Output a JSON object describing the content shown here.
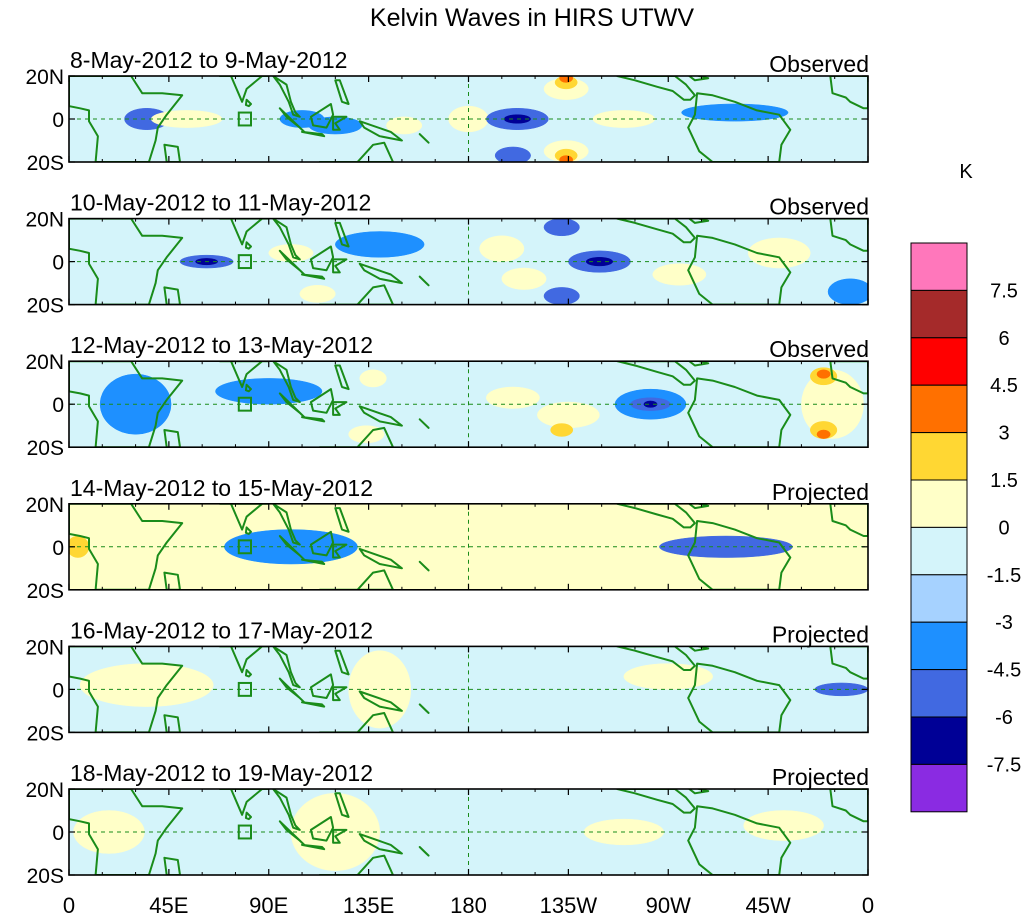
{
  "chart_data": {
    "type": "heatmap",
    "title": "Kelvin Waves in HIRS UTWV",
    "units_label": "K",
    "x_ticks": [
      "0",
      "45E",
      "90E",
      "135E",
      "180",
      "135W",
      "90W",
      "45W",
      "0"
    ],
    "x_tick_values": [
      0,
      45,
      90,
      135,
      180,
      225,
      270,
      315,
      360
    ],
    "xlim": [
      0,
      360
    ],
    "y_ticks": [
      "20N",
      "0",
      "20S"
    ],
    "y_tick_values": [
      20,
      0,
      -20
    ],
    "ylim": [
      -20,
      20
    ],
    "colorbar": {
      "labels": [
        "7.5",
        "6",
        "4.5",
        "3",
        "1.5",
        "0",
        "-1.5",
        "-3",
        "-4.5",
        "-6",
        "-7.5"
      ],
      "colors": [
        "#ff77bb",
        "#a52a2a",
        "#ff0000",
        "#ff7000",
        "#ffd733",
        "#ffffc8",
        "#d4f4fa",
        "#a6d2ff",
        "#1e90ff",
        "#4169e1",
        "#000096",
        "#8a2be2"
      ]
    },
    "panels": [
      {
        "date_range": "8-May-2012 to 9-May-2012",
        "status": "Observed",
        "features": [
          {
            "lon": 35,
            "lat": 0,
            "rx": 10,
            "ry": 5,
            "v": -3
          },
          {
            "lon": 53,
            "lat": 0,
            "rx": 16,
            "ry": 4,
            "v": 1.5
          },
          {
            "lon": 105,
            "lat": 0,
            "rx": 10,
            "ry": 4,
            "v": -1.5
          },
          {
            "lon": 120,
            "lat": -3,
            "rx": 12,
            "ry": 4,
            "v": -1.5
          },
          {
            "lon": 151,
            "lat": -3,
            "rx": 8,
            "ry": 4,
            "v": 1.5
          },
          {
            "lon": 180,
            "lat": 0,
            "rx": 9,
            "ry": 6,
            "v": 1.5
          },
          {
            "lon": 202,
            "lat": 0,
            "rx": 14,
            "ry": 5,
            "v": -3
          },
          {
            "lon": 202,
            "lat": 0,
            "rx": 6,
            "ry": 2,
            "v": -4.5
          },
          {
            "lon": 224,
            "lat": 14,
            "rx": 10,
            "ry": 5,
            "v": 1.5
          },
          {
            "lon": 224,
            "lat": 17,
            "rx": 5,
            "ry": 3,
            "v": 3
          },
          {
            "lon": 224,
            "lat": 19,
            "rx": 3,
            "ry": 2,
            "v": 4.5
          },
          {
            "lon": 200,
            "lat": -17,
            "rx": 8,
            "ry": 4,
            "v": -3
          },
          {
            "lon": 224,
            "lat": -15,
            "rx": 10,
            "ry": 5,
            "v": 1.5
          },
          {
            "lon": 224,
            "lat": -17,
            "rx": 5,
            "ry": 3,
            "v": 3
          },
          {
            "lon": 224,
            "lat": -19,
            "rx": 3,
            "ry": 2,
            "v": 4.5
          },
          {
            "lon": 250,
            "lat": 0,
            "rx": 14,
            "ry": 4,
            "v": 1.5
          },
          {
            "lon": 300,
            "lat": 3,
            "rx": 24,
            "ry": 4,
            "v": -1.5
          }
        ]
      },
      {
        "date_range": "10-May-2012 to 11-May-2012",
        "status": "Observed",
        "features": [
          {
            "lon": 62,
            "lat": 0,
            "rx": 12,
            "ry": 3,
            "v": -3
          },
          {
            "lon": 62,
            "lat": 0,
            "rx": 5,
            "ry": 1.5,
            "v": -4.5
          },
          {
            "lon": 100,
            "lat": 4,
            "rx": 10,
            "ry": 4,
            "v": 1.5
          },
          {
            "lon": 112,
            "lat": -15,
            "rx": 8,
            "ry": 4,
            "v": 1.5
          },
          {
            "lon": 140,
            "lat": 8,
            "rx": 20,
            "ry": 6,
            "v": -1.5
          },
          {
            "lon": 195,
            "lat": 6,
            "rx": 10,
            "ry": 6,
            "v": 1.5
          },
          {
            "lon": 205,
            "lat": -8,
            "rx": 10,
            "ry": 5,
            "v": 1.5
          },
          {
            "lon": 239,
            "lat": 0,
            "rx": 14,
            "ry": 5,
            "v": -3
          },
          {
            "lon": 239,
            "lat": 0,
            "rx": 6,
            "ry": 2,
            "v": -4.5
          },
          {
            "lon": 222,
            "lat": 16,
            "rx": 8,
            "ry": 4,
            "v": -3
          },
          {
            "lon": 222,
            "lat": -16,
            "rx": 8,
            "ry": 4,
            "v": -3
          },
          {
            "lon": 275,
            "lat": -6,
            "rx": 12,
            "ry": 5,
            "v": 1.5
          },
          {
            "lon": 320,
            "lat": 4,
            "rx": 14,
            "ry": 7,
            "v": 1.5
          },
          {
            "lon": 352,
            "lat": -14,
            "rx": 10,
            "ry": 6,
            "v": -1.5
          }
        ]
      },
      {
        "date_range": "12-May-2012 to 13-May-2012",
        "status": "Observed",
        "features": [
          {
            "lon": 30,
            "lat": 0,
            "rx": 16,
            "ry": 14,
            "v": -1.5
          },
          {
            "lon": 90,
            "lat": 6,
            "rx": 24,
            "ry": 6,
            "v": -1.5
          },
          {
            "lon": 137,
            "lat": 12,
            "rx": 6,
            "ry": 4,
            "v": 1.5
          },
          {
            "lon": 134,
            "lat": -14,
            "rx": 8,
            "ry": 4,
            "v": 1.5
          },
          {
            "lon": 200,
            "lat": 3,
            "rx": 12,
            "ry": 5,
            "v": 1.5
          },
          {
            "lon": 225,
            "lat": -5,
            "rx": 14,
            "ry": 6,
            "v": 1.5
          },
          {
            "lon": 222,
            "lat": -12,
            "rx": 5,
            "ry": 3,
            "v": 3
          },
          {
            "lon": 262,
            "lat": 0,
            "rx": 16,
            "ry": 7,
            "v": -1.5
          },
          {
            "lon": 262,
            "lat": 0,
            "rx": 9,
            "ry": 3,
            "v": -3
          },
          {
            "lon": 262,
            "lat": 0,
            "rx": 3,
            "ry": 1.5,
            "v": -4.5
          },
          {
            "lon": 344,
            "lat": 0,
            "rx": 14,
            "ry": 16,
            "v": 1.5
          },
          {
            "lon": 340,
            "lat": 13,
            "rx": 6,
            "ry": 4,
            "v": 3
          },
          {
            "lon": 340,
            "lat": 14,
            "rx": 3,
            "ry": 2,
            "v": 4.5
          },
          {
            "lon": 340,
            "lat": -12,
            "rx": 6,
            "ry": 4,
            "v": 3
          },
          {
            "lon": 340,
            "lat": -14,
            "rx": 3,
            "ry": 2,
            "v": 4.5
          }
        ]
      },
      {
        "date_range": "14-May-2012 to 15-May-2012",
        "status": "Projected",
        "features": [
          {
            "lon": 4,
            "lat": 0,
            "rx": 10,
            "ry": 18,
            "v": 1.5
          },
          {
            "lon": 4,
            "lat": 0,
            "rx": 5,
            "ry": 5,
            "v": 3
          },
          {
            "lon": 100,
            "lat": 0,
            "rx": 30,
            "ry": 8,
            "v": -1.5
          },
          {
            "lon": 180,
            "lat": 6,
            "rx": 22,
            "ry": 6,
            "v": 1.5
          },
          {
            "lon": 250,
            "lat": 14,
            "rx": 10,
            "ry": 5,
            "v": 1.5
          },
          {
            "lon": 296,
            "lat": 0,
            "rx": 30,
            "ry": 5,
            "v": -3
          },
          {
            "lon": 356,
            "lat": 0,
            "rx": 6,
            "ry": 12,
            "v": 1.5
          }
        ]
      },
      {
        "date_range": "16-May-2012 to 17-May-2012",
        "status": "Projected",
        "features": [
          {
            "lon": 35,
            "lat": 2,
            "rx": 30,
            "ry": 10,
            "v": 1.5
          },
          {
            "lon": 140,
            "lat": 0,
            "rx": 14,
            "ry": 18,
            "v": 1.5
          },
          {
            "lon": 270,
            "lat": 6,
            "rx": 20,
            "ry": 6,
            "v": 1.5
          },
          {
            "lon": 348,
            "lat": 0,
            "rx": 12,
            "ry": 3,
            "v": -3
          }
        ]
      },
      {
        "date_range": "18-May-2012 to 19-May-2012",
        "status": "Projected",
        "features": [
          {
            "lon": 18,
            "lat": 0,
            "rx": 16,
            "ry": 10,
            "v": 1.5
          },
          {
            "lon": 120,
            "lat": 0,
            "rx": 20,
            "ry": 18,
            "v": 1.5
          },
          {
            "lon": 250,
            "lat": 0,
            "rx": 18,
            "ry": 6,
            "v": 1.5
          },
          {
            "lon": 322,
            "lat": 3,
            "rx": 18,
            "ry": 7,
            "v": 1.5
          }
        ]
      }
    ]
  }
}
